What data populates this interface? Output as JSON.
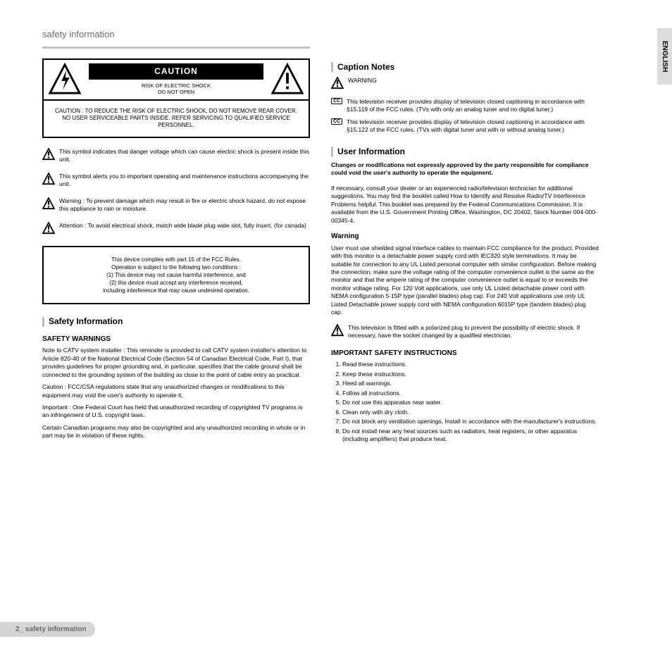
{
  "page": {
    "title": "safety information",
    "number": "2_",
    "sideTab": "ENGLISH",
    "footer": "safety information"
  },
  "cautionBox": {
    "label": "CAUTION",
    "sublabel1": "RISK OF ELECTRIC SHOCK",
    "sublabel2": "DO NOT OPEN",
    "body": "CAUTION : TO REDUCE THE RISK OF ELECTRIC SHOCK, DO NOT REMOVE REAR COVER. NO USER SERVICEABLE PARTS INSIDE. REFER SERVICING TO QUALIFIED SERVICE PERSONNEL."
  },
  "left": {
    "p1": "This symbol indicates that danger voltage which can cause electric shock is present inside this unit.",
    "p2": "This symbol alerts you to important operating and maintenance instructions accompanying the unit.",
    "p3": "To prevent damage which may result in fire or electric shock hazard, do not expose this appliance to rain or moisture.",
    "p4": "To avoid electrical shock, match wide blade plug wide slot, fully insert. (for canada)"
  },
  "fcc": {
    "text": "This device complies with part 15 of the FCC Rules.\nOperation is subject to the following two conditions :\n(1) This device may not cause harmful interference, and\n(2) this device must accept any interference received,\nincluding interference that may cause undesired operation."
  },
  "safetySection": {
    "title": "Safety Information",
    "warningsHead": "SAFETY WARNINGS",
    "note1": "Note to CATV system installer : This reminder is provided to call CATV system installer's attention to Article 820-40 of the National Electrical Code (Section 54 of Canadian Electrical Code, Part I), that provides guidelines for proper grounding and, in particular, specifies that the cable ground shall be connected to the grounding system of the building as close to the point of cable entry as practical.",
    "note2": "Caution : FCC/CSA regulations state that any unauthorized changes or modifications to this equipment may void the user's authority to operate it.",
    "note3": "Important : One Federal Court has held that unauthorized recording of copyrighted TV programs is an infringement of U.S. copyright laws.",
    "note4": "Certain Canadian programs may also be copyrighted and any unauthorized recording in whole or in part may be in violation of these rights."
  },
  "captionSection": {
    "title": "Caption Notes",
    "p1": "This television receiver provides display of television closed captioning in accordance with §15.119 of the FCC rules. (TVs with only an analog tuner and no digital tuner.)",
    "p2": "This television receiver provides display of television closed captioning in accordance with §15.122 of the FCC rules. (TVs with digital tuner and with or without analog tuner.)"
  },
  "userInfoSection": {
    "title": "User Information",
    "chgHead": "Changes or modifications not expressly approved by the party responsible for compliance could void the user's authority to operate the equipment.",
    "body1": "If necessary, consult your dealer or an experienced radio/television technician for additional suggestions. You may find the booklet called How to Identify and Resolve Radio/TV Interference Problems helpful. This booklet was prepared by the Federal Communications Commission. It is available from the U.S. Government Printing Office, Washington, DC 20402, Stock Number 004-000-00345-4.",
    "warnHead": "Warning",
    "body2": "User must use shielded signal interface cables to maintain FCC compliance for the product. Provided with this monitor is a detachable power supply cord with IEC320 style terminations. It may be suitable for connection to any UL Listed personal computer with similar configuration. Before making the connection, make sure the voltage rating of the computer convenience outlet is the same as the monitor and that the ampere rating of the computer convenience outlet is equal to or exceeds the monitor voltage rating. For 120 Volt applications, use only UL Listed detachable power cord with NEMA configuration 5-15P type (parallel blades) plug cap. For 240 Volt applications use only UL Listed Detachable power supply cord with NEMA configuration 6015P type (tandem blades) plug cap.",
    "body3": "This television is fitted with a polarized plug to prevent the possibility of electric shock. If necessary, have the socket changed by a qualified electrician.",
    "instrHead": "IMPORTANT SAFETY INSTRUCTIONS",
    "items": [
      "Read these instructions.",
      "Keep these instructions.",
      "Heed all warnings.",
      "Follow all instructions.",
      "Do not use this apparatus near water.",
      "Clean only with dry cloth.",
      "Do not block any ventilation openings, Install in accordance with the manufacturer's instructions.",
      "Do not install near any heat sources such as radiators, heat registers, or other apparatus (including amplifiers) that produce heat."
    ]
  }
}
